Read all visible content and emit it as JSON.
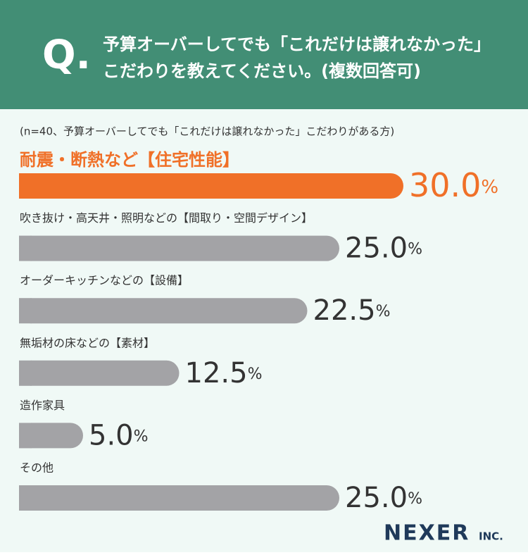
{
  "header": {
    "mark": "Q.",
    "question_lines": [
      "予算オーバーしてでも「これだけは譲れなかった」",
      "こだわりを教えてください。(複数回答可)"
    ]
  },
  "chart_data": {
    "type": "bar",
    "orientation": "horizontal",
    "subtitle": "(n=40、予算オーバーしてでも「これだけは譲れなかった」こだわりがある方)",
    "categories": [
      "耐震・断熱など【住宅性能】",
      "吹き抜け・高天井・照明などの【間取り・空間デザイン】",
      "オーダーキッチンなどの【設備】",
      "無垢材の床などの【素材】",
      "造作家具",
      "その他"
    ],
    "values": [
      30.0,
      25.0,
      22.5,
      12.5,
      5.0,
      25.0
    ],
    "value_labels": [
      "30.0%",
      "25.0%",
      "22.5%",
      "12.5%",
      "5.0%",
      "25.0%"
    ],
    "colors": [
      "#f07028",
      "#a3a3a6",
      "#a3a3a6",
      "#a3a3a6",
      "#a3a3a6",
      "#a3a3a6"
    ]
  },
  "footer": {
    "brand": "NEXER",
    "brand_suffix": "INC."
  }
}
